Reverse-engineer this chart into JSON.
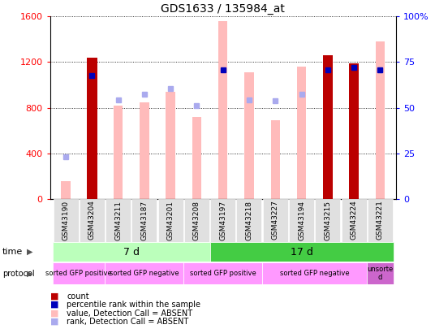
{
  "title": "GDS1633 / 135984_at",
  "samples": [
    "GSM43190",
    "GSM43204",
    "GSM43211",
    "GSM43187",
    "GSM43201",
    "GSM43208",
    "GSM43197",
    "GSM43218",
    "GSM43227",
    "GSM43194",
    "GSM43215",
    "GSM43224",
    "GSM43221"
  ],
  "count_values": [
    0,
    1240,
    0,
    0,
    0,
    0,
    0,
    0,
    0,
    0,
    1260,
    1190,
    0
  ],
  "percentile_values": [
    null,
    1080,
    null,
    null,
    null,
    null,
    1130,
    null,
    null,
    null,
    1130,
    1150,
    1130
  ],
  "absent_value_bars": [
    160,
    0,
    820,
    850,
    940,
    720,
    1560,
    1110,
    690,
    1160,
    0,
    0,
    1380
  ],
  "absent_rank_values": [
    370,
    null,
    870,
    920,
    970,
    820,
    null,
    870,
    860,
    920,
    null,
    null,
    1130
  ],
  "ylim": [
    0,
    1600
  ],
  "yticks": [
    0,
    400,
    800,
    1200,
    1600
  ],
  "right_yticks_pos": [
    0,
    400,
    800,
    1200,
    1600
  ],
  "right_ylabels": [
    "0",
    "25",
    "50",
    "75",
    "100%"
  ],
  "bar_width": 0.35,
  "count_color": "#bb0000",
  "percentile_color": "#0000bb",
  "absent_value_color": "#ffbbbb",
  "absent_rank_color": "#aaaaee",
  "time_7d_color": "#bbffbb",
  "time_17d_color": "#44cc44",
  "protocol_pink": "#ff99ff",
  "protocol_dark": "#cc66cc",
  "legend_items": [
    {
      "label": "count",
      "color": "#bb0000"
    },
    {
      "label": "percentile rank within the sample",
      "color": "#0000bb"
    },
    {
      "label": "value, Detection Call = ABSENT",
      "color": "#ffbbbb"
    },
    {
      "label": "rank, Detection Call = ABSENT",
      "color": "#aaaaee"
    }
  ]
}
